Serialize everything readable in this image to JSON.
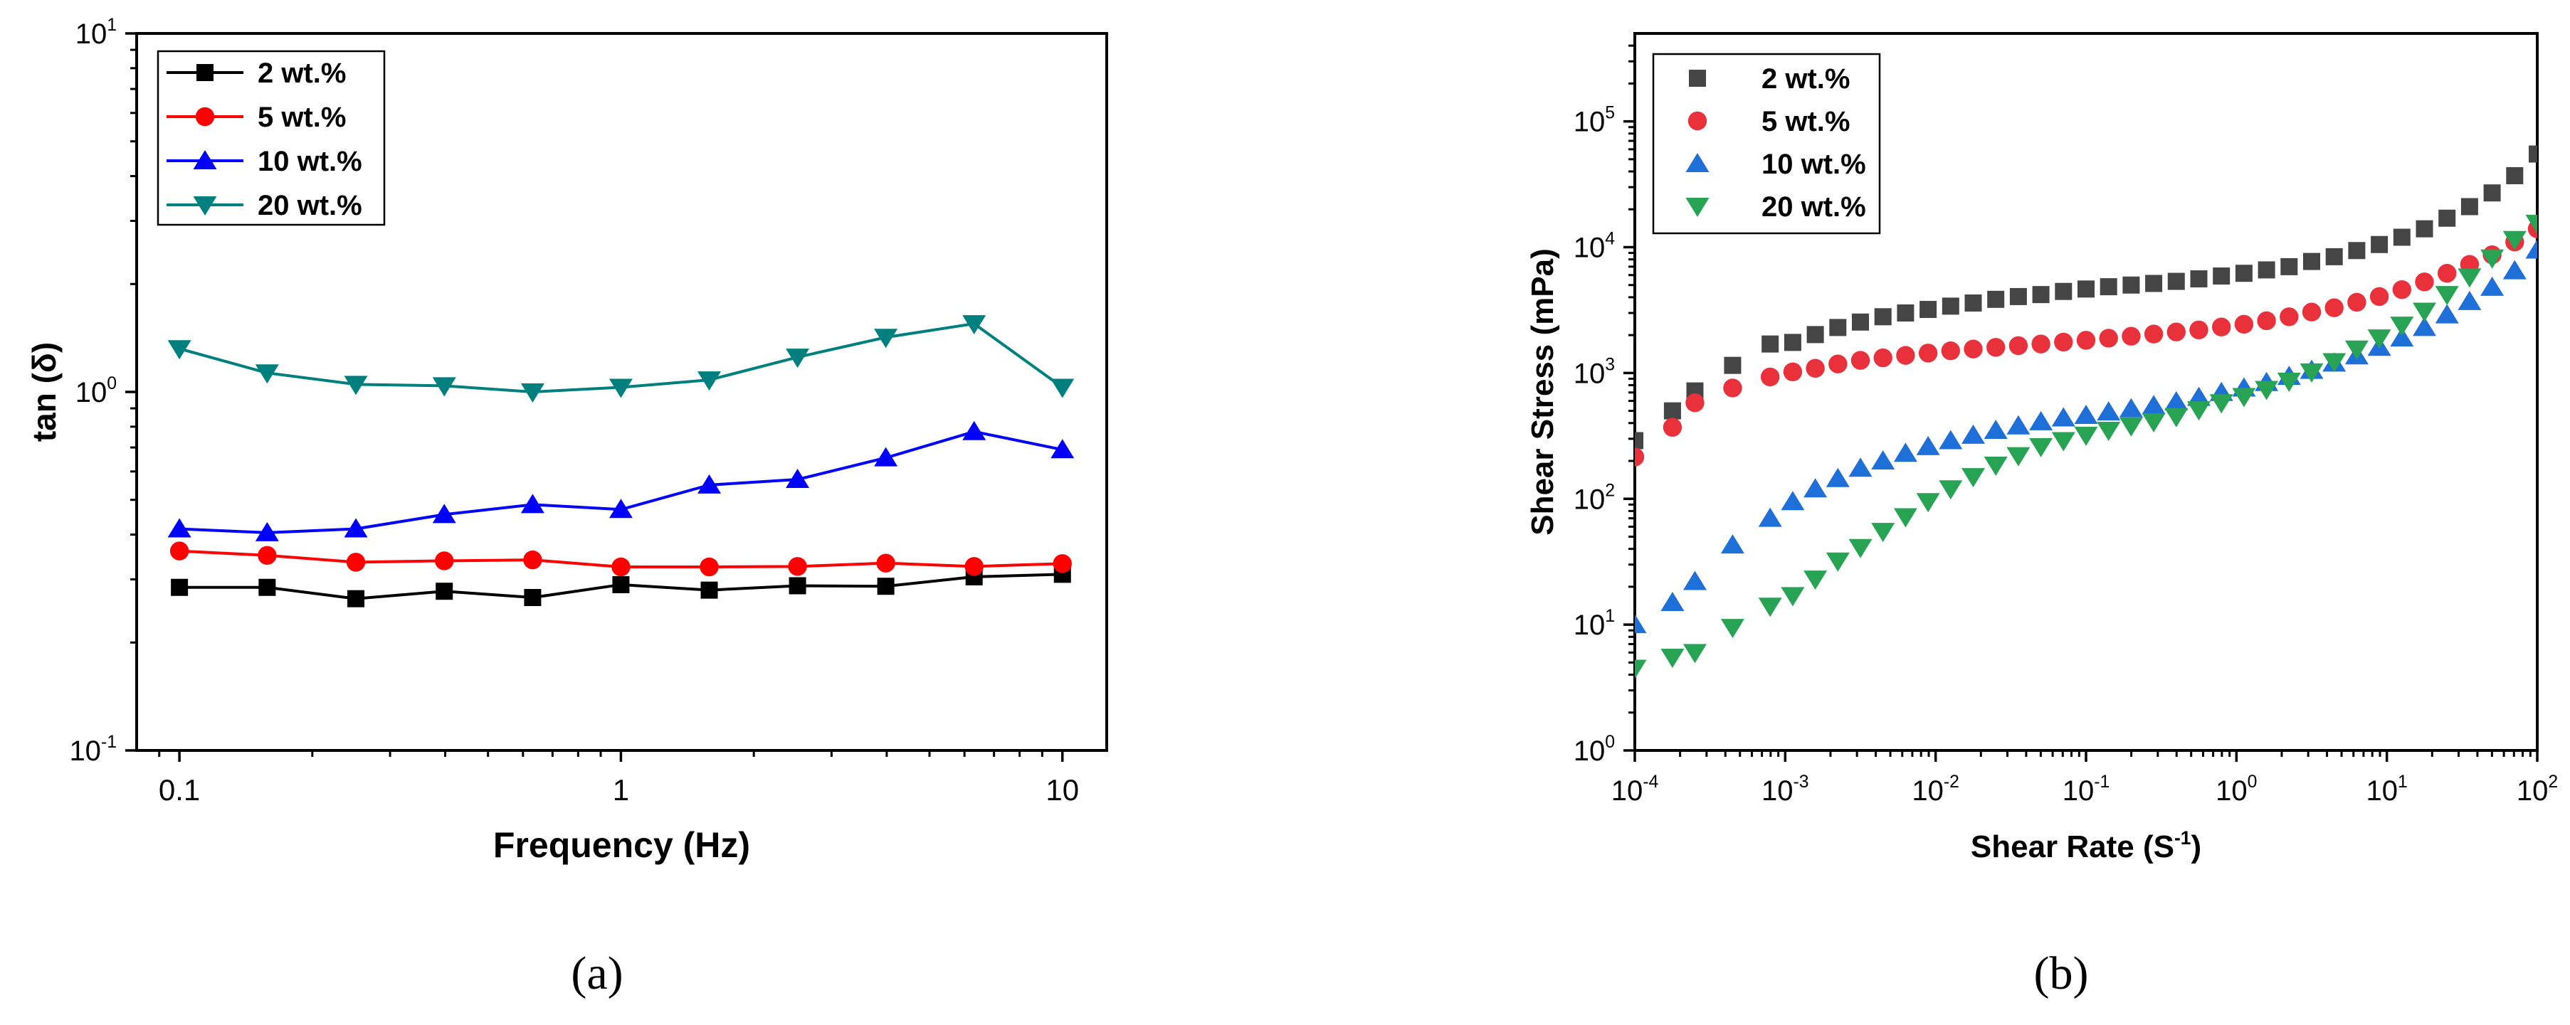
{
  "chart_data": [
    {
      "panel_label": "(a)",
      "type": "line",
      "xlabel": "Frequency (Hz)",
      "ylabel": "tan (δ)",
      "xscale": "log",
      "yscale": "log",
      "xlim": [
        0.08,
        12.6
      ],
      "ylim": [
        0.1,
        10
      ],
      "xticks": [
        {
          "value": 0.1,
          "label": "0.1"
        },
        {
          "value": 1,
          "label": "1"
        },
        {
          "value": 10,
          "label": "10"
        }
      ],
      "yticks": [
        {
          "value": 0.1,
          "base": "10",
          "exp": "-1"
        },
        {
          "value": 1,
          "base": "10",
          "exp": "0"
        },
        {
          "value": 10,
          "base": "10",
          "exp": "1"
        }
      ],
      "legend_position": "top-left",
      "x": [
        0.1,
        0.158,
        0.251,
        0.398,
        0.631,
        1,
        1.585,
        2.512,
        3.981,
        6.31,
        10
      ],
      "series": [
        {
          "name": "2 wt.%",
          "color": "#000000",
          "marker": "square",
          "values": [
            0.285,
            0.285,
            0.265,
            0.278,
            0.267,
            0.29,
            0.28,
            0.288,
            0.287,
            0.305,
            0.31
          ]
        },
        {
          "name": "5 wt.%",
          "color": "#ff0000",
          "marker": "circle",
          "values": [
            0.36,
            0.35,
            0.335,
            0.338,
            0.34,
            0.325,
            0.325,
            0.326,
            0.333,
            0.326,
            0.332
          ]
        },
        {
          "name": "10 wt.%",
          "color": "#0000ff",
          "marker": "triangle-up",
          "values": [
            0.415,
            0.405,
            0.415,
            0.455,
            0.485,
            0.47,
            0.55,
            0.57,
            0.655,
            0.775,
            0.69
          ]
        },
        {
          "name": "20 wt.%",
          "color": "#007f7f",
          "marker": "triangle-down",
          "values": [
            1.32,
            1.13,
            1.05,
            1.04,
            1.0,
            1.03,
            1.08,
            1.25,
            1.42,
            1.55,
            1.03
          ]
        }
      ]
    },
    {
      "panel_label": "(b)",
      "type": "scatter",
      "xlabel": "Shear Rate (S",
      "xlabel_sup": "-1",
      "xlabel_close": ")",
      "ylabel": "Shear Stress (mPa)",
      "xscale": "log",
      "yscale": "log",
      "xlim": [
        0.0001,
        100
      ],
      "ylim": [
        1,
        500000
      ],
      "xticks": [
        {
          "value": 0.0001,
          "base": "10",
          "exp": "-4"
        },
        {
          "value": 0.001,
          "base": "10",
          "exp": "-3"
        },
        {
          "value": 0.01,
          "base": "10",
          "exp": "-2"
        },
        {
          "value": 0.1,
          "base": "10",
          "exp": "-1"
        },
        {
          "value": 1,
          "base": "10",
          "exp": "0"
        },
        {
          "value": 10,
          "base": "10",
          "exp": "1"
        },
        {
          "value": 100,
          "base": "10",
          "exp": "2"
        }
      ],
      "yticks": [
        {
          "value": 1,
          "base": "10",
          "exp": "0"
        },
        {
          "value": 10,
          "base": "10",
          "exp": "1"
        },
        {
          "value": 100,
          "base": "10",
          "exp": "2"
        },
        {
          "value": 1000,
          "base": "10",
          "exp": "3"
        },
        {
          "value": 10000,
          "base": "10",
          "exp": "4"
        },
        {
          "value": 100000,
          "base": "10",
          "exp": "5"
        }
      ],
      "legend_position": "top-left",
      "x": [
        0.0001,
        0.000178,
        0.000251,
        0.000447,
        0.000794,
        0.001122,
        0.001585,
        0.002239,
        0.003162,
        0.004467,
        0.00631,
        0.008913,
        0.012589,
        0.017783,
        0.025119,
        0.035481,
        0.050119,
        0.070795,
        0.1,
        0.141254,
        0.199526,
        0.281838,
        0.398107,
        0.562341,
        0.794328,
        1.122018,
        1.584893,
        2.238721,
        3.162278,
        4.466836,
        6.309573,
        8.912509,
        12.589254,
        17.782794,
        25.118864,
        35.481339,
        50.118723,
        70.794578,
        100
      ],
      "series": [
        {
          "name": "2 wt.%",
          "color": "#454545",
          "marker": "square",
          "values": [
            290,
            500,
            720,
            1150,
            1700,
            1750,
            2020,
            2300,
            2540,
            2800,
            3000,
            3200,
            3400,
            3600,
            3850,
            4050,
            4200,
            4450,
            4650,
            4850,
            5000,
            5150,
            5350,
            5600,
            5900,
            6200,
            6600,
            7000,
            7700,
            8400,
            9400,
            10500,
            12000,
            14000,
            17000,
            21000,
            27000,
            37000,
            55000
          ]
        },
        {
          "name": "5 wt.%",
          "color": "#e8313b",
          "marker": "circle",
          "values": [
            215,
            370,
            580,
            760,
            930,
            1020,
            1090,
            1180,
            1260,
            1320,
            1380,
            1440,
            1500,
            1550,
            1600,
            1650,
            1700,
            1760,
            1820,
            1890,
            1960,
            2040,
            2120,
            2200,
            2320,
            2440,
            2600,
            2800,
            3050,
            3300,
            3650,
            4050,
            4600,
            5300,
            6200,
            7300,
            8700,
            11000,
            14000
          ]
        },
        {
          "name": "10 wt.%",
          "color": "#1e6fd8",
          "marker": "triangle-up",
          "values": [
            10,
            15,
            22,
            43,
            70,
            95,
            120,
            145,
            175,
            200,
            230,
            260,
            290,
            320,
            350,
            380,
            410,
            440,
            460,
            490,
            520,
            550,
            590,
            640,
            700,
            760,
            840,
            940,
            1050,
            1200,
            1370,
            1600,
            1900,
            2300,
            2900,
            3700,
            4800,
            6500,
            9500
          ]
        },
        {
          "name": "20 wt.%",
          "color": "#27a353",
          "marker": "triangle-down",
          "values": [
            4.5,
            5.5,
            6,
            9.5,
            14,
            17,
            23,
            32,
            41,
            55,
            72,
            95,
            120,
            150,
            185,
            220,
            260,
            290,
            320,
            350,
            380,
            410,
            450,
            510,
            580,
            650,
            740,
            860,
            1020,
            1230,
            1550,
            1900,
            2400,
            3100,
            4200,
            5800,
            8200,
            11500,
            15500
          ]
        }
      ]
    }
  ]
}
